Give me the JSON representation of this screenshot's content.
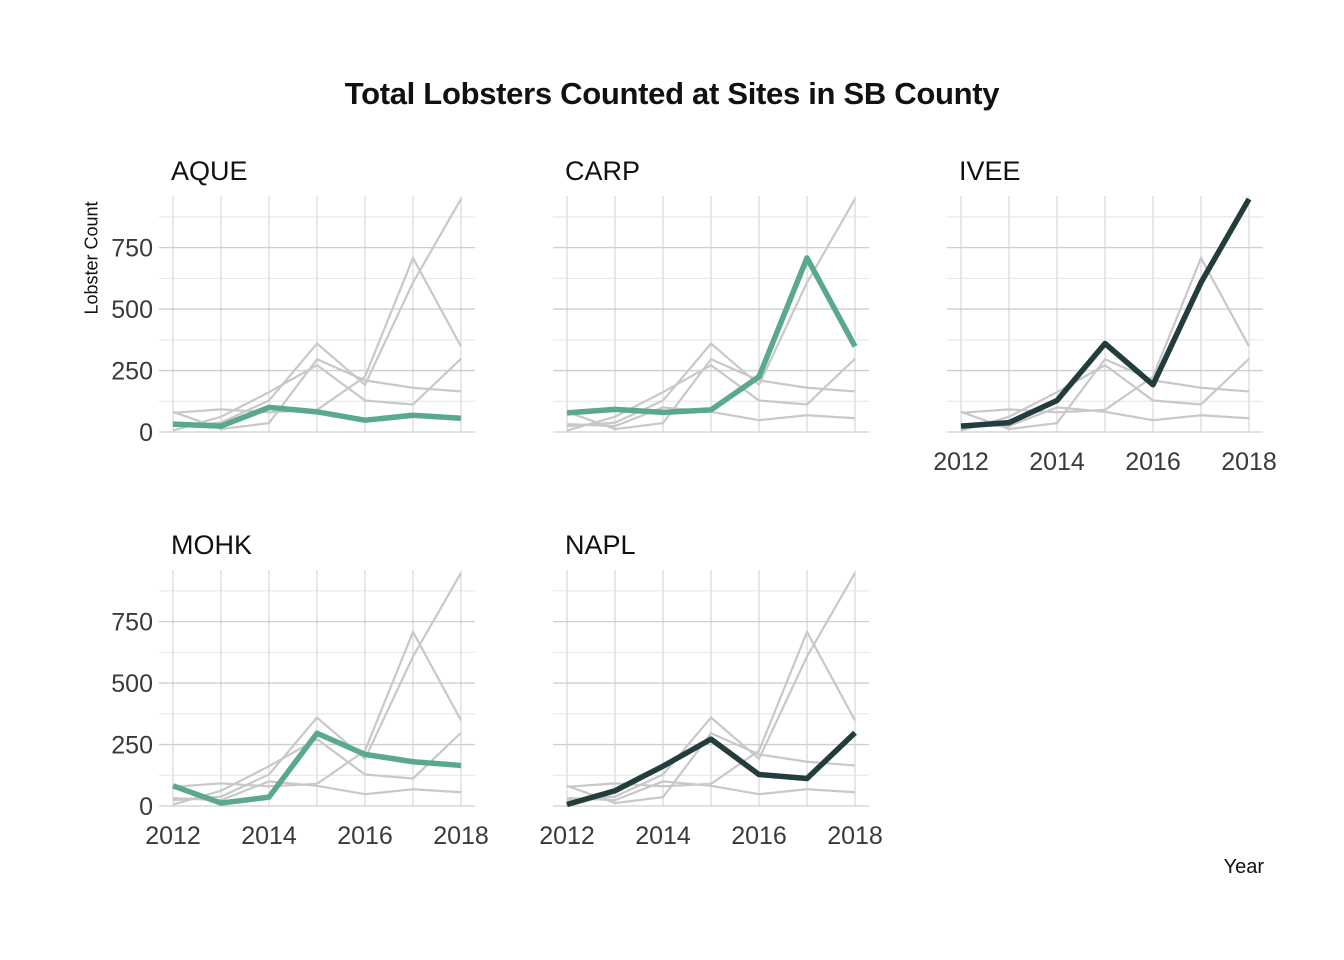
{
  "chart_data": {
    "type": "line",
    "title": "Total Lobsters Counted at Sites in SB County",
    "xlabel": "Year",
    "ylabel": "Lobster Count",
    "x": [
      2012,
      2013,
      2014,
      2015,
      2016,
      2017,
      2018
    ],
    "xticks": [
      "2012",
      "2014",
      "2016",
      "2018"
    ],
    "yticks": [
      "0",
      "250",
      "500",
      "750"
    ],
    "xlim": [
      2012,
      2018
    ],
    "ylim": [
      0,
      960
    ],
    "grid": true,
    "background_series_color": "#c8c8c8",
    "panels": [
      {
        "name": "AQUE",
        "values": [
          32,
          24,
          100,
          82,
          48,
          68,
          56
        ],
        "color": "#5aa98c",
        "show_y": true,
        "show_x": false
      },
      {
        "name": "CARP",
        "values": [
          78,
          92,
          80,
          90,
          225,
          708,
          348
        ],
        "color": "#5aa98c",
        "show_y": false,
        "show_x": false
      },
      {
        "name": "IVEE",
        "values": [
          24,
          38,
          128,
          360,
          192,
          608,
          948
        ],
        "color": "#233d3d",
        "show_y": false,
        "show_x": true
      },
      {
        "name": "MOHK",
        "values": [
          82,
          12,
          36,
          296,
          210,
          180,
          165
        ],
        "color": "#5aa98c",
        "show_y": true,
        "show_x": true
      },
      {
        "name": "NAPL",
        "values": [
          6,
          62,
          162,
          272,
          128,
          112,
          298
        ],
        "color": "#233d3d",
        "show_y": false,
        "show_x": true
      }
    ]
  }
}
